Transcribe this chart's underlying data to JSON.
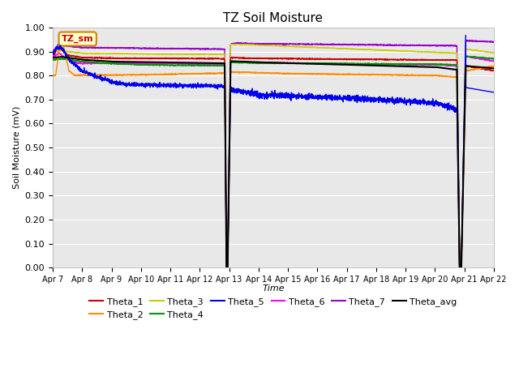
{
  "title": "TZ Soil Moisture",
  "xlabel": "Time",
  "ylabel": "Soil Moisture (mV)",
  "ylim": [
    0.0,
    1.0
  ],
  "yticks": [
    0.0,
    0.1,
    0.2,
    0.3,
    0.4,
    0.5,
    0.6,
    0.7,
    0.8,
    0.9,
    1.0
  ],
  "x_labels": [
    "Apr 7",
    "Apr 8",
    "Apr 9",
    "Apr 10",
    "Apr 11",
    "Apr 12",
    "Apr 13",
    "Apr 14",
    "Apr 15",
    "Apr 16",
    "Apr 17",
    "Apr 18",
    "Apr 19",
    "Apr 20",
    "Apr 21",
    "Apr 22"
  ],
  "colors": {
    "Theta_1": "#cc0000",
    "Theta_2": "#ff8c00",
    "Theta_3": "#cccc00",
    "Theta_4": "#009900",
    "Theta_5": "#0000ee",
    "Theta_6": "#ff00ff",
    "Theta_7": "#9900cc",
    "Theta_avg": "#000000"
  },
  "background_color": "#e8e8e8",
  "fig_bg": "#ffffff",
  "annotation_box": {
    "text": "TZ_sm",
    "facecolor": "#ffffcc",
    "edgecolor": "#cc8800",
    "text_color": "#cc0000"
  },
  "legend_rows": [
    [
      "Theta_1",
      "Theta_2",
      "Theta_3",
      "Theta_4",
      "Theta_5",
      "Theta_6"
    ],
    [
      "Theta_7",
      "Theta_avg"
    ]
  ]
}
